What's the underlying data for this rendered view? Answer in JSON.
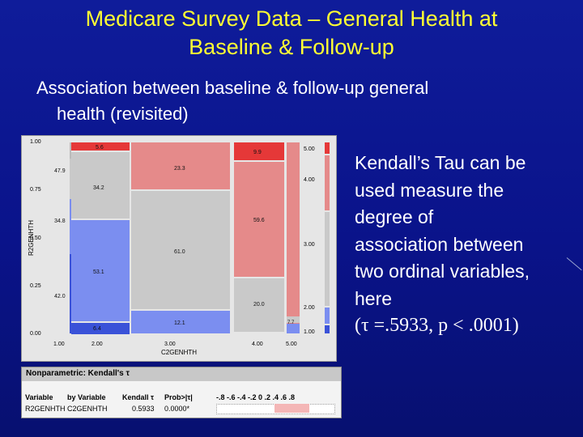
{
  "title": {
    "line1": "Medicare Survey Data – General Health at",
    "line2": "Baseline & Follow-up"
  },
  "subtitle": {
    "line1": "Association between baseline & follow-up general",
    "line2": "health (revisited)"
  },
  "side_text": {
    "line1": "Kendall’s Tau can be",
    "line2": "used measure the",
    "line3": "degree of",
    "line4": "association between",
    "line5": "two ordinal variables,",
    "line6": "here",
    "stat": "(τ =.5933, p < .0001)"
  },
  "mosaic": {
    "y_label": "R2GENHTH",
    "x_label": "C2GENHTH",
    "y_ticks": [
      "1.00",
      "0.75",
      "0.50",
      "0.25",
      "0.00"
    ],
    "x_ticks": [
      "1.00",
      "2.00",
      "3.00",
      "4.00",
      "5.00"
    ],
    "right_ticks": [
      "5.00",
      "4.00",
      "3.00",
      "2.00",
      "1.00"
    ],
    "colors": {
      "blue_dark": "#3a52d8",
      "blue_light": "#7b8ef0",
      "gray": "#c9c9c9",
      "red_light": "#e58a8a",
      "red_dark": "#e53838"
    },
    "cell_labels": [
      "5.6",
      "47.9",
      "34.2",
      "34.8",
      "53.1",
      "42.0",
      "6.4",
      "23.3",
      "61.0",
      "12.1",
      "9.9",
      "59.6",
      "20.0",
      "7.7"
    ]
  },
  "table": {
    "header": "Nonparametric: Kendall's τ",
    "columns": [
      "Variable",
      "by Variable",
      "Kendall τ",
      "Prob>|τ|"
    ],
    "axis_ticks": "-.8 -.6 -.4 -.2  0  .2  .4  .6  .8",
    "row": {
      "variable": "R2GENHTH",
      "by_variable": "C2GENHTH",
      "tau": "0.5933",
      "prob": "0.0000*"
    },
    "bar_color": "#f4b6b6"
  }
}
